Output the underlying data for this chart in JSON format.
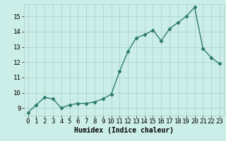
{
  "x": [
    0,
    1,
    2,
    3,
    4,
    5,
    6,
    7,
    8,
    9,
    10,
    11,
    12,
    13,
    14,
    15,
    16,
    17,
    18,
    19,
    20,
    21,
    22,
    23
  ],
  "y": [
    8.7,
    9.2,
    9.7,
    9.6,
    9.0,
    9.2,
    9.3,
    9.3,
    9.4,
    9.6,
    9.9,
    11.4,
    12.7,
    13.6,
    13.8,
    14.1,
    13.4,
    14.2,
    14.6,
    15.0,
    15.6,
    12.9,
    12.3,
    11.9
  ],
  "line_color": "#2d7d6b",
  "marker": "D",
  "marker_size": 2.2,
  "linewidth": 1.0,
  "bg_color": "#cceee8",
  "grid_color": "#aaccc6",
  "xlabel": "Humidex (Indice chaleur)",
  "xlim": [
    -0.5,
    23.5
  ],
  "ylim": [
    8.5,
    15.8
  ],
  "yticks": [
    9,
    10,
    11,
    12,
    13,
    14,
    15
  ],
  "xtick_labels": [
    "0",
    "1",
    "2",
    "3",
    "4",
    "5",
    "6",
    "7",
    "8",
    "9",
    "10",
    "11",
    "12",
    "13",
    "14",
    "15",
    "16",
    "17",
    "18",
    "19",
    "20",
    "21",
    "22",
    "23"
  ],
  "xlabel_fontsize": 7,
  "tick_fontsize": 6.5
}
